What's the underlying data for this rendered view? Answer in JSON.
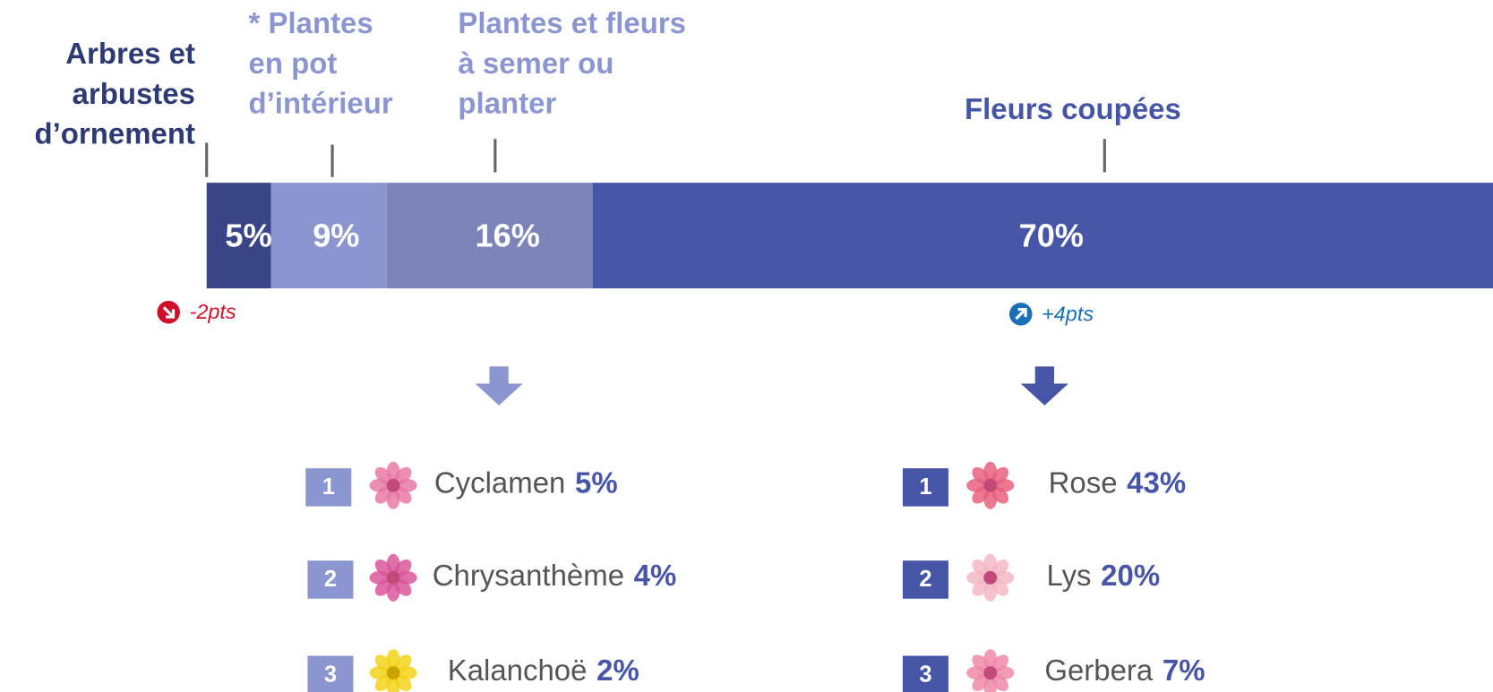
{
  "chart_data": {
    "type": "stacked_bar",
    "categories": [
      "Arbres et\narbustes\nd’ornement",
      "* Plantes\nen  pot\nd’intérieur",
      "Plantes et fleurs\nà semer ou\nplanter",
      "Fleurs coupées"
    ],
    "values": [
      5,
      9,
      16,
      70
    ],
    "value_labels": [
      "5%",
      "9%",
      "16%",
      "70%"
    ],
    "colors": [
      "#3a4588",
      "#8b96d0",
      "#7d84b8",
      "#4755a6"
    ],
    "label_colors": [
      "#2e3a73",
      "#8b96d0",
      "#8b96d0",
      "#4755a6"
    ],
    "xlim": [
      0,
      100
    ],
    "annotations": [
      {
        "text": "-2pts",
        "trend": "down",
        "color": "#d0102a"
      },
      {
        "text": "+4pts",
        "trend": "up",
        "color": "#1a6fb5"
      }
    ]
  },
  "rankings": [
    {
      "color": "#8b96d0",
      "items": [
        {
          "rank": 1,
          "name": "Cyclamen",
          "value": 5,
          "value_label": "5%"
        },
        {
          "rank": 2,
          "name": "Chrysanthème",
          "value": 4,
          "value_label": "4%"
        },
        {
          "rank": 3,
          "name": "Kalanchoë",
          "value": 2,
          "value_label": "2%"
        }
      ]
    },
    {
      "color": "#4755a6",
      "items": [
        {
          "rank": 1,
          "name": "Rose",
          "value": 43,
          "value_label": "43%"
        },
        {
          "rank": 2,
          "name": "Lys",
          "value": 20,
          "value_label": "20%"
        },
        {
          "rank": 3,
          "name": "Gerbera",
          "value": 7,
          "value_label": "7%"
        }
      ]
    }
  ]
}
